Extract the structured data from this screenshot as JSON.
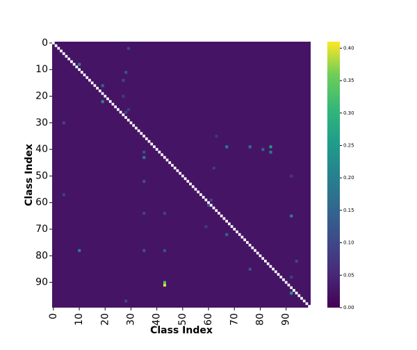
{
  "chart_data": {
    "type": "heatmap",
    "xlabel": "Class Index",
    "ylabel": "Class Index",
    "colormap": "viridis",
    "clim": [
      0,
      0.41
    ],
    "xlim": [
      0,
      100
    ],
    "ylim": [
      0,
      100
    ],
    "xticks": [
      0,
      10,
      20,
      30,
      40,
      50,
      60,
      70,
      80,
      90
    ],
    "yticks": [
      0,
      10,
      20,
      30,
      40,
      50,
      60,
      70,
      80,
      90
    ],
    "cticks": [
      {
        "value": 0,
        "label": "0.00"
      },
      {
        "value": 0.05,
        "label": "0.05"
      },
      {
        "value": 0.1,
        "label": "0.10"
      },
      {
        "value": 0.15,
        "label": "0.15"
      },
      {
        "value": 0.2,
        "label": "0.20"
      },
      {
        "value": 0.25,
        "label": "0.25"
      },
      {
        "value": 0.3,
        "label": "0.30"
      },
      {
        "value": 0.35,
        "label": "0.35"
      },
      {
        "value": 0.4,
        "label": "0.40"
      }
    ],
    "rows": [
      91,
      90,
      8,
      22,
      16,
      39,
      39,
      39,
      41,
      40,
      43,
      41,
      65,
      78,
      94,
      93,
      72,
      61,
      52,
      64,
      64,
      78,
      78,
      30,
      11,
      2,
      85,
      82,
      26,
      14,
      25,
      20,
      57,
      47,
      69,
      88,
      97,
      35,
      50,
      59
    ],
    "cols": [
      43,
      43,
      10,
      19,
      19,
      67,
      76,
      84,
      84,
      81,
      35,
      35,
      92,
      10,
      92,
      93,
      67,
      60,
      35,
      35,
      43,
      35,
      43,
      4,
      28,
      29,
      76,
      94,
      28,
      27,
      29,
      27,
      4,
      62,
      59,
      92,
      28,
      63,
      92,
      61
    ],
    "values": [
      0.4,
      0.33,
      0.2,
      0.22,
      0.15,
      0.2,
      0.18,
      0.25,
      0.2,
      0.15,
      0.2,
      0.12,
      0.2,
      0.2,
      0.25,
      0.2,
      0.15,
      0.12,
      0.12,
      0.1,
      0.1,
      0.12,
      0.12,
      0.1,
      0.12,
      0.1,
      0.12,
      0.1,
      0.09,
      0.1,
      0.08,
      0.08,
      0.09,
      0.08,
      0.08,
      0.09,
      0.1,
      0.07,
      0.08,
      0.09
    ]
  }
}
